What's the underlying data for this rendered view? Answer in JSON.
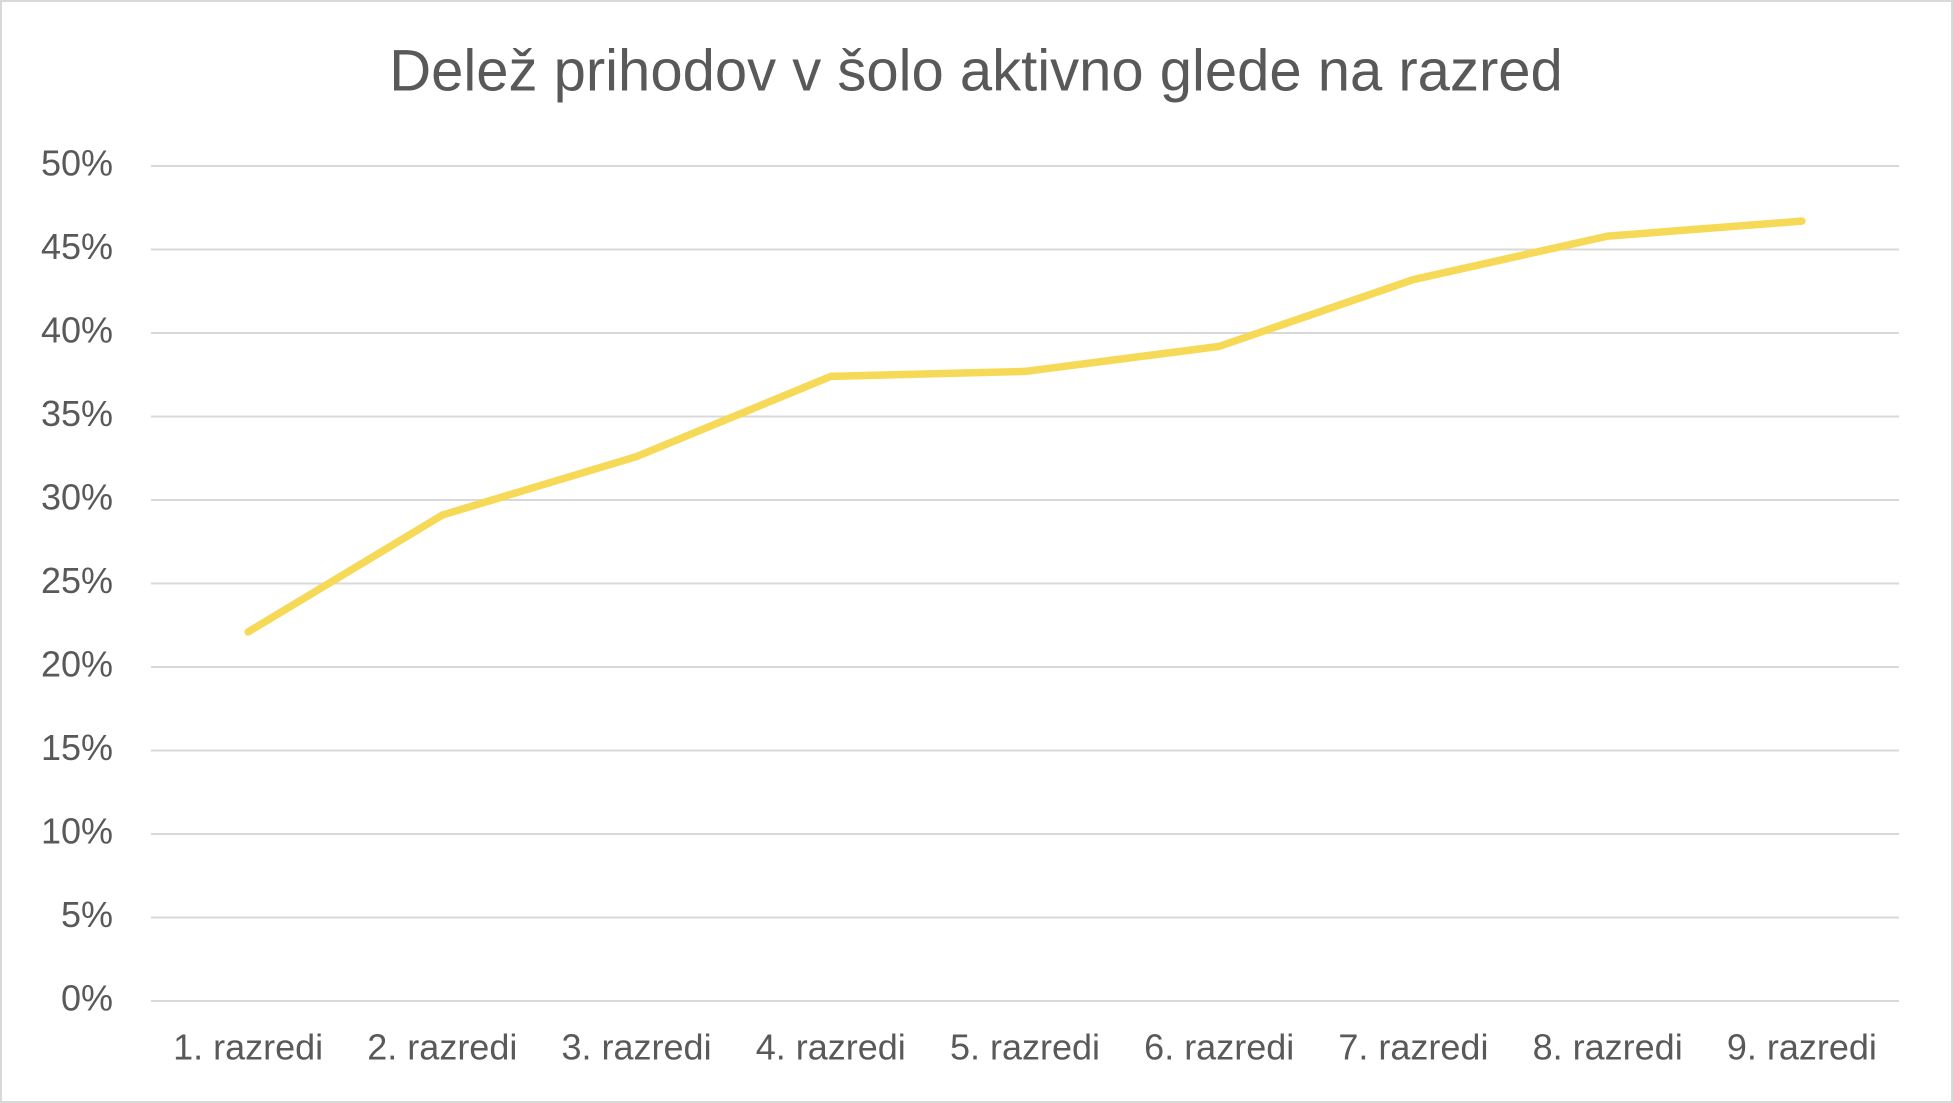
{
  "chart_data": {
    "type": "line",
    "title": "Delež prihodov v šolo aktivno glede na razred",
    "categories": [
      "1. razredi",
      "2. razredi",
      "3. razredi",
      "4. razredi",
      "5. razredi",
      "6. razredi",
      "7. razredi",
      "8. razredi",
      "9. razredi"
    ],
    "series": [
      {
        "color": "#f5d957",
        "values": [
          22.1,
          29.1,
          32.6,
          37.4,
          37.7,
          39.2,
          43.2,
          45.8,
          46.7
        ]
      }
    ],
    "ylim": [
      0,
      50
    ],
    "yticks": [
      {
        "value": 0,
        "label": "0%"
      },
      {
        "value": 5,
        "label": "5%"
      },
      {
        "value": 10,
        "label": "10%"
      },
      {
        "value": 15,
        "label": "15%"
      },
      {
        "value": 20,
        "label": "20%"
      },
      {
        "value": 25,
        "label": "25%"
      },
      {
        "value": 30,
        "label": "30%"
      },
      {
        "value": 35,
        "label": "35%"
      },
      {
        "value": 40,
        "label": "40%"
      },
      {
        "value": 45,
        "label": "45%"
      },
      {
        "value": 50,
        "label": "50%"
      }
    ],
    "grid": true
  }
}
